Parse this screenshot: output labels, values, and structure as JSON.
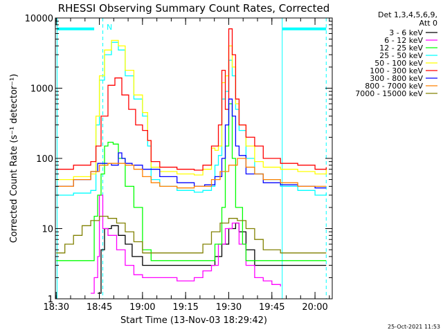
{
  "chart_data": {
    "type": "line",
    "title": "RHESSI Observing Summary Count Rates, Corrected",
    "xlabel": "Start Time (13-Nov-03 18:29:42)",
    "ylabel": "Corrected Count Rate (s⁻¹ detector⁻¹)",
    "yscale": "log",
    "ylim": [
      1,
      10000
    ],
    "xlim": [
      18.495,
      20.1
    ],
    "x_ticks": [
      {
        "value": 18.5,
        "label": "18:30"
      },
      {
        "value": 18.75,
        "label": "18:45"
      },
      {
        "value": 19.0,
        "label": "19:00"
      },
      {
        "value": 19.25,
        "label": "19:15"
      },
      {
        "value": 19.5,
        "label": "19:30"
      },
      {
        "value": 19.75,
        "label": "19:45"
      },
      {
        "value": 20.0,
        "label": "20:00"
      }
    ],
    "y_ticks": [
      {
        "value": 1,
        "label": "1"
      },
      {
        "value": 10,
        "label": "10"
      },
      {
        "value": 100,
        "label": "100"
      },
      {
        "value": 1000,
        "label": "1000"
      },
      {
        "value": 10000,
        "label": "10000"
      }
    ],
    "legend_header": [
      "Det 1,3,4,5,6,9,",
      "Att 0"
    ],
    "legend_position": "top-right",
    "annotation": "N",
    "timestamp": "25-Oct-2021 11:53",
    "night_markers": {
      "color": "#00ffff",
      "solid_lines": [
        18.505,
        19.81
      ],
      "dashed_lines": [
        18.77,
        20.065
      ],
      "bars": [
        {
          "x0": 18.505,
          "x1": 18.72,
          "y": 7000
        },
        {
          "x0": 19.81,
          "x1": 20.065,
          "y": 7000
        }
      ]
    },
    "series": [
      {
        "name": "3 - 6 keV",
        "color": "#000000",
        "x": [
          18.74,
          18.76,
          18.78,
          18.82,
          18.86,
          18.9,
          18.94,
          19.0,
          19.1,
          19.2,
          19.3,
          19.36,
          19.42,
          19.46,
          19.5,
          19.54,
          19.56,
          19.6,
          19.65,
          19.7,
          19.8,
          19.9,
          20.0,
          20.065
        ],
        "y": [
          1.2,
          5,
          10,
          11,
          8,
          6,
          4,
          3,
          3,
          3,
          3,
          3,
          4,
          6,
          10,
          12,
          9,
          5,
          3,
          3,
          3,
          3,
          3,
          3
        ]
      },
      {
        "name": "6 - 12 keV",
        "color": "#ff00ff",
        "x": [
          18.7,
          18.72,
          18.74,
          18.75,
          18.77,
          18.8,
          18.85,
          18.9,
          18.95,
          19.0,
          19.1,
          19.2,
          19.3,
          19.35,
          19.4,
          19.44,
          19.48,
          19.52,
          19.56,
          19.6,
          19.65,
          19.7,
          19.75,
          19.8
        ],
        "y": [
          1.2,
          2,
          4,
          30,
          10,
          8,
          5,
          3,
          2.2,
          2,
          2,
          1.8,
          2,
          2.5,
          3,
          6,
          10,
          12,
          6,
          3,
          2,
          1.8,
          1.6,
          1.5
        ]
      },
      {
        "name": "12 - 25 keV",
        "color": "#00ff00",
        "x": [
          18.5,
          18.6,
          18.7,
          18.72,
          18.74,
          18.76,
          18.78,
          18.8,
          18.83,
          18.86,
          18.9,
          18.95,
          19.0,
          19.05,
          19.1,
          19.2,
          19.3,
          19.38,
          19.42,
          19.46,
          19.48,
          19.5,
          19.52,
          19.54,
          19.58,
          19.6,
          19.65,
          19.7,
          19.8,
          19.9,
          20.0,
          20.065
        ],
        "y": [
          3.5,
          3.5,
          3.5,
          15,
          30,
          60,
          150,
          170,
          160,
          100,
          40,
          20,
          5,
          3.5,
          3.5,
          3.5,
          3.5,
          3.5,
          6,
          20,
          150,
          600,
          100,
          20,
          6,
          3.5,
          3.5,
          3.5,
          3.5,
          3.5,
          3.5,
          3.5
        ]
      },
      {
        "name": "25 - 50 keV",
        "color": "#00ffff",
        "x": [
          18.5,
          18.6,
          18.7,
          18.73,
          18.75,
          18.78,
          18.82,
          18.86,
          18.9,
          18.95,
          19.0,
          19.03,
          19.05,
          19.1,
          19.2,
          19.3,
          19.35,
          19.4,
          19.42,
          19.44,
          19.46,
          19.48,
          19.5,
          19.52,
          19.54,
          19.56,
          19.6,
          19.65,
          19.7,
          19.8,
          19.9,
          20.0,
          20.065
        ],
        "y": [
          30,
          32,
          35,
          300,
          1300,
          3000,
          4500,
          3500,
          1500,
          700,
          400,
          150,
          50,
          40,
          35,
          33,
          35,
          40,
          80,
          110,
          700,
          900,
          2500,
          1500,
          500,
          250,
          100,
          60,
          50,
          40,
          35,
          30,
          32
        ]
      },
      {
        "name": "50 - 100 keV",
        "color": "#ffff00",
        "x": [
          18.5,
          18.6,
          18.7,
          18.73,
          18.75,
          18.78,
          18.82,
          18.86,
          18.9,
          18.95,
          19.0,
          19.03,
          19.05,
          19.1,
          19.2,
          19.3,
          19.35,
          19.4,
          19.42,
          19.44,
          19.46,
          19.48,
          19.5,
          19.52,
          19.54,
          19.56,
          19.6,
          19.65,
          19.7,
          19.8,
          19.9,
          20.0,
          20.065
        ],
        "y": [
          50,
          55,
          60,
          400,
          1500,
          3500,
          4800,
          4000,
          1800,
          800,
          450,
          180,
          75,
          65,
          60,
          58,
          70,
          140,
          130,
          150,
          1200,
          1500,
          4000,
          2000,
          600,
          300,
          150,
          90,
          75,
          70,
          65,
          60,
          70
        ]
      },
      {
        "name": "100 - 300 keV",
        "color": "#ff0000",
        "x": [
          18.5,
          18.6,
          18.7,
          18.73,
          18.76,
          18.8,
          18.84,
          18.88,
          18.92,
          18.96,
          19.0,
          19.03,
          19.05,
          19.1,
          19.2,
          19.3,
          19.35,
          19.4,
          19.44,
          19.46,
          19.48,
          19.5,
          19.52,
          19.54,
          19.56,
          19.6,
          19.65,
          19.7,
          19.8,
          19.9,
          20.0,
          20.065
        ],
        "y": [
          70,
          80,
          90,
          150,
          400,
          1100,
          1400,
          800,
          500,
          300,
          250,
          180,
          90,
          75,
          70,
          68,
          80,
          150,
          300,
          1800,
          500,
          7000,
          3000,
          700,
          300,
          200,
          150,
          100,
          85,
          80,
          70,
          75
        ]
      },
      {
        "name": "300 - 800 keV",
        "color": "#0000ff",
        "x": [
          18.5,
          18.6,
          18.7,
          18.74,
          18.78,
          18.82,
          18.86,
          18.88,
          18.9,
          18.94,
          19.0,
          19.1,
          19.2,
          19.3,
          19.36,
          19.42,
          19.46,
          19.48,
          19.5,
          19.52,
          19.54,
          19.56,
          19.6,
          19.7,
          19.8,
          19.9,
          20.0,
          20.065
        ],
        "y": [
          40,
          50,
          65,
          85,
          85,
          80,
          120,
          100,
          85,
          80,
          70,
          55,
          45,
          40,
          42,
          55,
          100,
          300,
          700,
          400,
          150,
          110,
          60,
          45,
          42,
          40,
          38,
          38
        ]
      },
      {
        "name": "800 - 7000 keV",
        "color": "#ff8000",
        "x": [
          18.5,
          18.6,
          18.7,
          18.75,
          18.8,
          18.85,
          18.9,
          18.95,
          19.0,
          19.05,
          19.1,
          19.2,
          19.3,
          19.4,
          19.45,
          19.5,
          19.55,
          19.6,
          19.65,
          19.7,
          19.8,
          19.9,
          20.0,
          20.065
        ],
        "y": [
          40,
          50,
          65,
          80,
          85,
          85,
          80,
          70,
          55,
          45,
          40,
          38,
          40,
          50,
          65,
          80,
          100,
          75,
          60,
          50,
          45,
          40,
          40,
          40
        ]
      },
      {
        "name": "7000 - 15000 keV",
        "color": "#808000",
        "x": [
          18.5,
          18.55,
          18.6,
          18.65,
          18.7,
          18.75,
          18.8,
          18.85,
          18.9,
          18.95,
          19.0,
          19.1,
          19.2,
          19.3,
          19.35,
          19.4,
          19.45,
          19.5,
          19.55,
          19.6,
          19.65,
          19.7,
          19.8,
          19.9,
          20.0,
          20.065
        ],
        "y": [
          4.5,
          6,
          8,
          11,
          13,
          15,
          14,
          12,
          9,
          6.5,
          4.5,
          4.5,
          4.5,
          4.5,
          6,
          9,
          12,
          14,
          13,
          10,
          7,
          5,
          4.5,
          4.5,
          4.5,
          4.5
        ]
      }
    ]
  }
}
